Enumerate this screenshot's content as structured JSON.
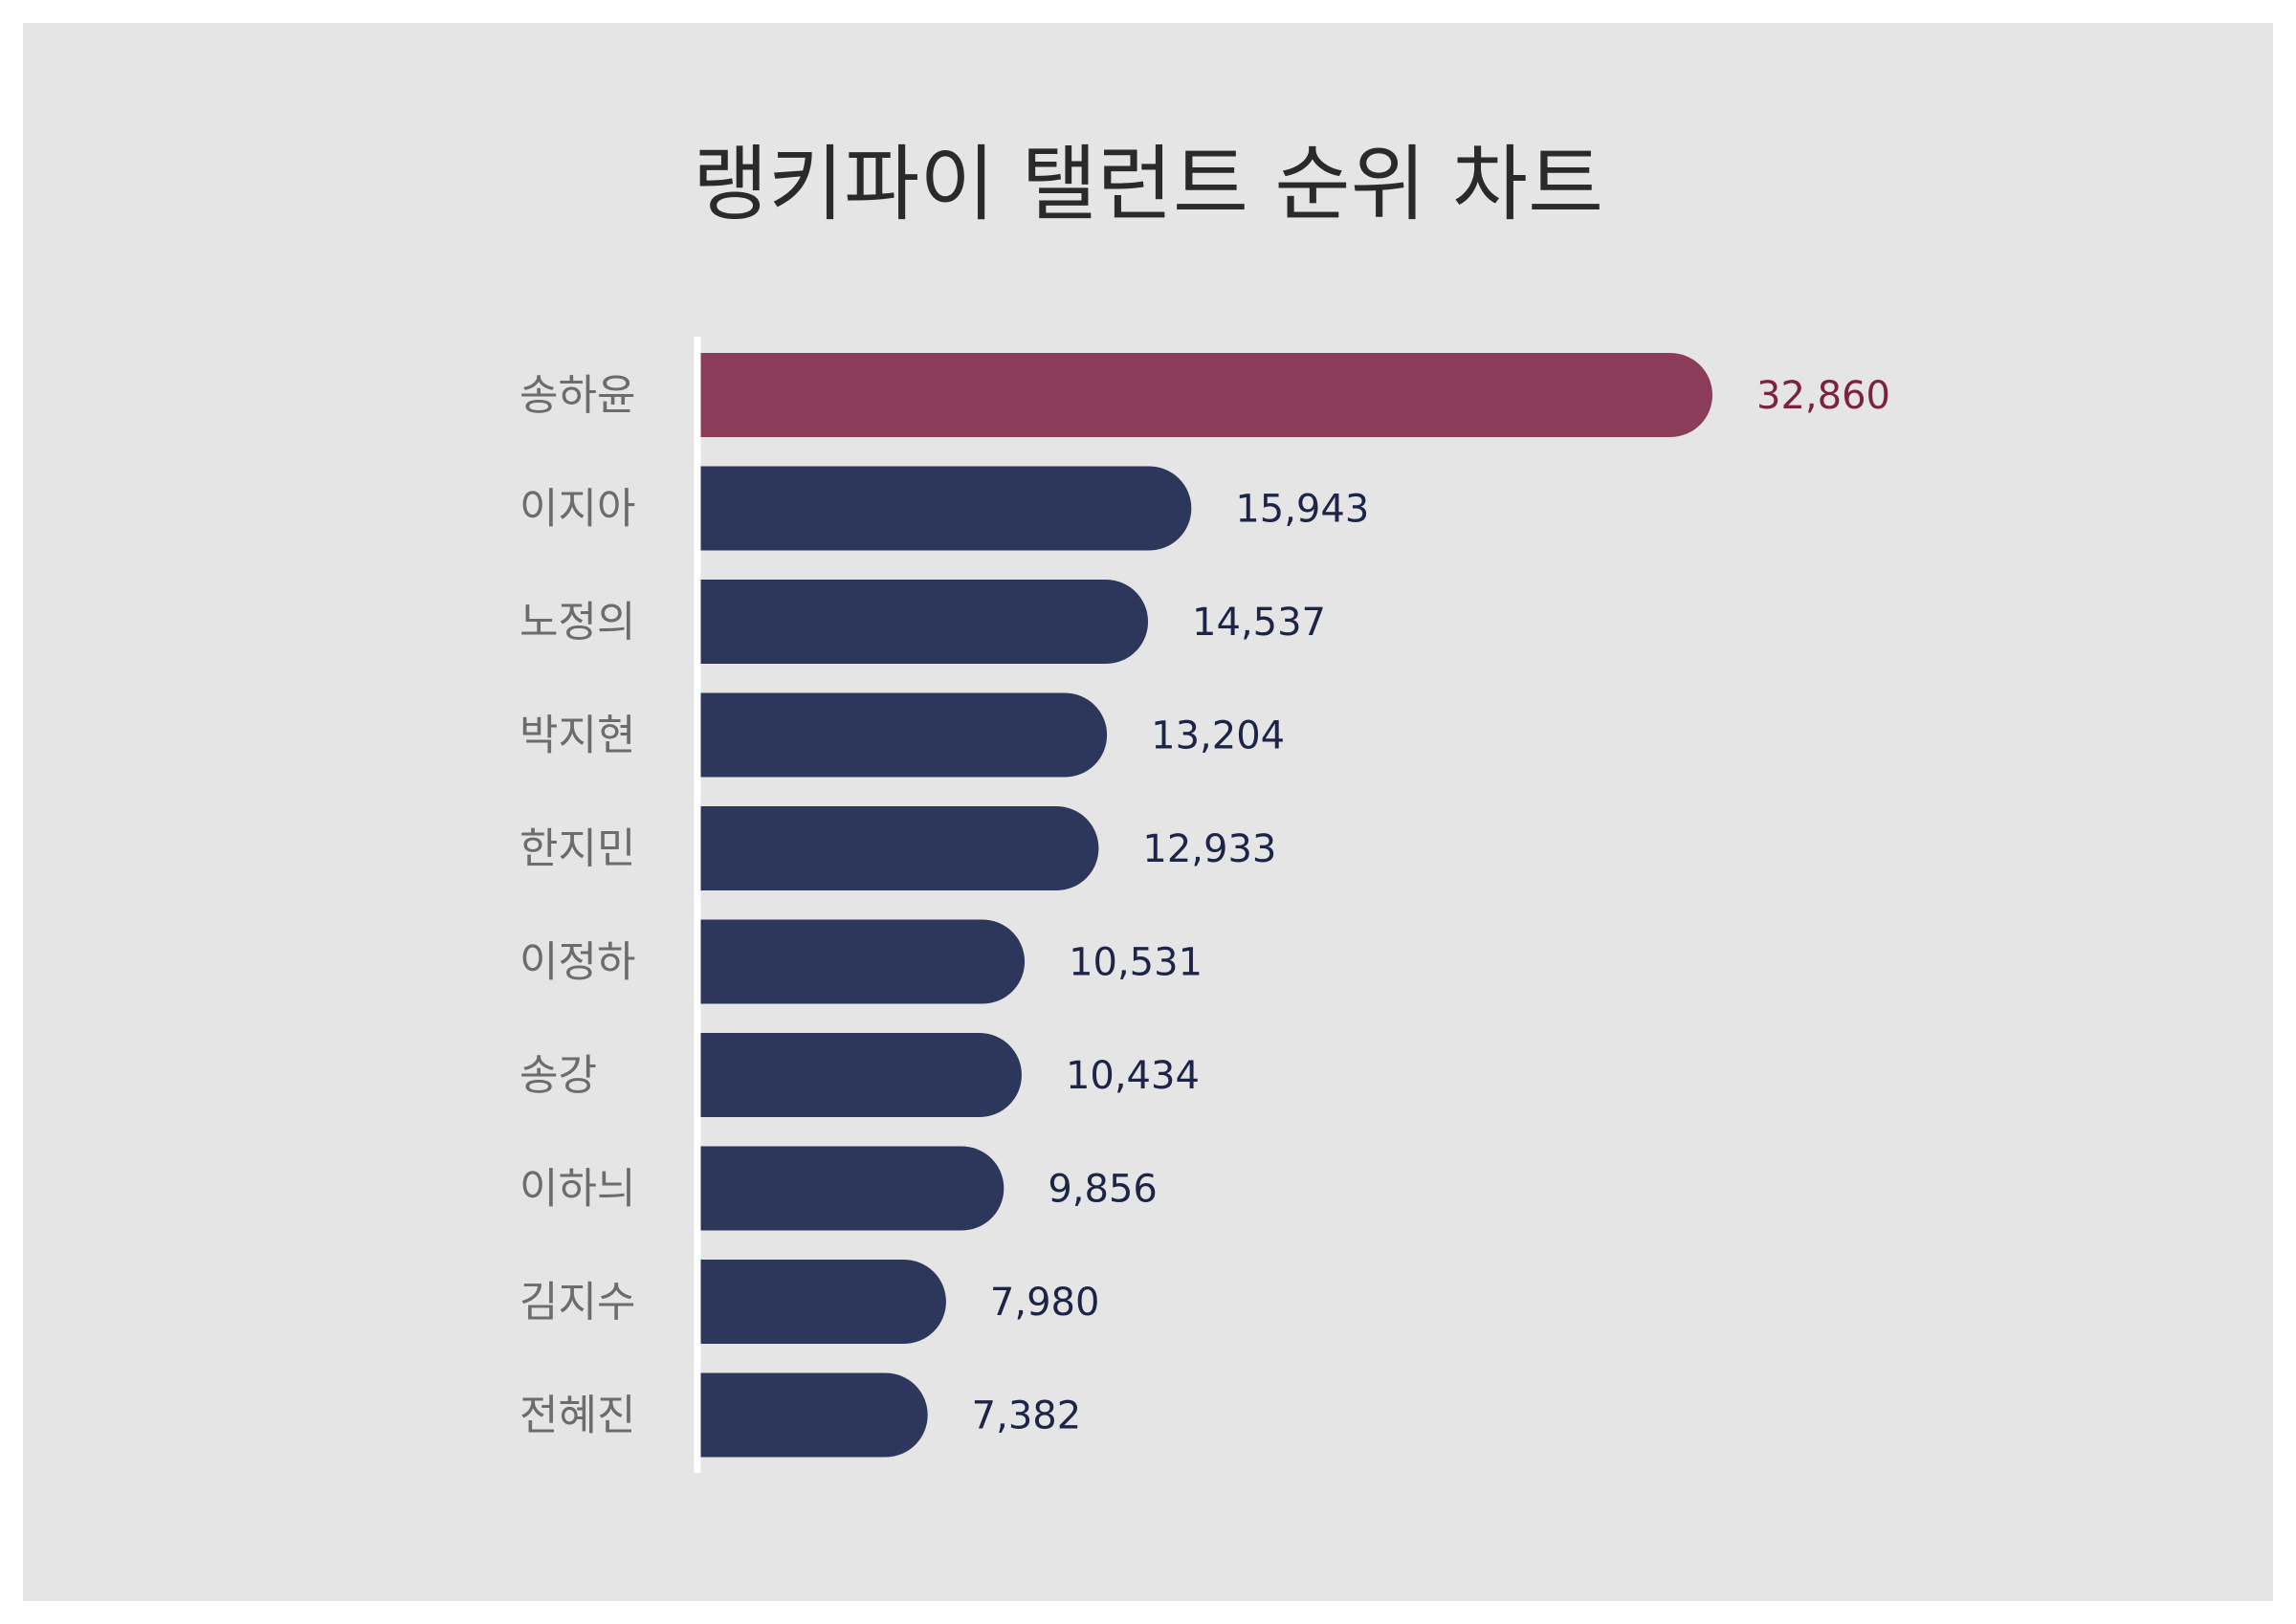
{
  "chart_data": {
    "type": "bar",
    "orientation": "horizontal",
    "title": "랭키파이 탤런트 순위 차트",
    "categories": [
      "송하윤",
      "이지아",
      "노정의",
      "박지현",
      "한지민",
      "이정하",
      "송강",
      "이하늬",
      "김지수",
      "전혜진"
    ],
    "values": [
      32860,
      15943,
      14537,
      13204,
      12933,
      10531,
      10434,
      9856,
      7980,
      7382
    ],
    "value_labels": [
      "32,860",
      "15,943",
      "14,537",
      "13,204",
      "12,933",
      "10,531",
      "10,434",
      "9,856",
      "7,980",
      "7,382"
    ],
    "xlim": [
      0,
      34000
    ],
    "grid": false,
    "legend": "none",
    "colors": {
      "highlight_bar": "#8a3c59",
      "bar": "#2c375b",
      "highlight_label": "#7a2340",
      "label": "#1c2448",
      "background": "#e6e5e6"
    }
  }
}
